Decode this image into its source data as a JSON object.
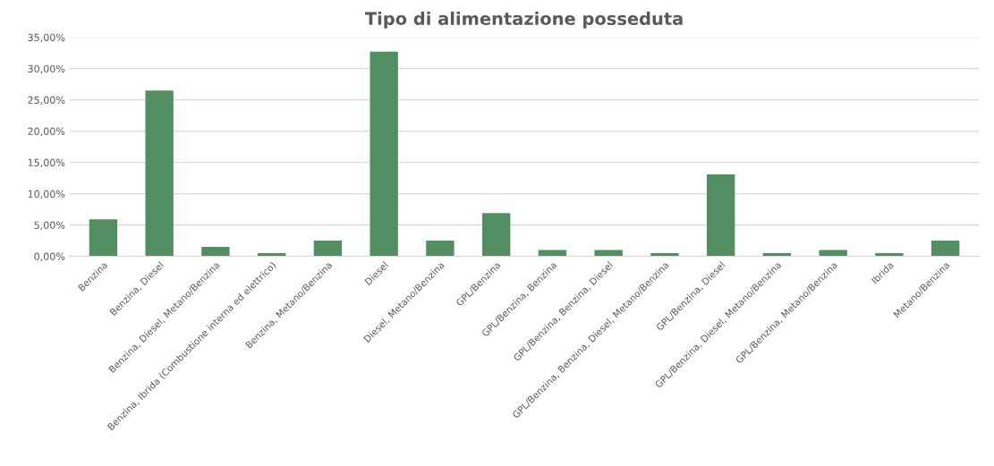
{
  "chart_data": {
    "type": "bar",
    "title": "Tipo di alimentazione posseduta",
    "categories": [
      "Benzina",
      "Benzina, Diesel",
      "Benzina, Diesel, Metano/Benzina",
      "Benzina, Ibrida (Combustione interna ed elettrico)",
      "Benzina, Metano/Benzina",
      "Diesel",
      "Diesel, Metano/Benzina",
      "GPL/Benzina",
      "GPL/Benzina, Benzina",
      "GPL/Benzina, Benzina, Diesel",
      "GPL/Benzina, Benzina, Diesel, Metano/Benzina",
      "GPL/Benzina, Diesel",
      "GPL/Benzina, Diesel, Metano/Benzina",
      "GPL/Benzina, Metano/Benzina",
      "Ibrida",
      "Metano/Benzina"
    ],
    "values": [
      5.9,
      26.5,
      1.5,
      0.5,
      2.5,
      32.7,
      2.5,
      6.9,
      1.0,
      1.0,
      0.5,
      13.1,
      0.5,
      1.0,
      0.5,
      2.5
    ],
    "color": "#528e61",
    "ylim": [
      0,
      35
    ],
    "yticks": [
      {
        "value": 0,
        "label": "0,00%"
      },
      {
        "value": 5,
        "label": "5,00%"
      },
      {
        "value": 10,
        "label": "10,00%"
      },
      {
        "value": 15,
        "label": "15,00%"
      },
      {
        "value": 20,
        "label": "20,00%"
      },
      {
        "value": 25,
        "label": "25,00%"
      },
      {
        "value": 30,
        "label": "30,00%"
      },
      {
        "value": 35,
        "label": "35,00%"
      }
    ],
    "grid": "y",
    "legend": false
  }
}
